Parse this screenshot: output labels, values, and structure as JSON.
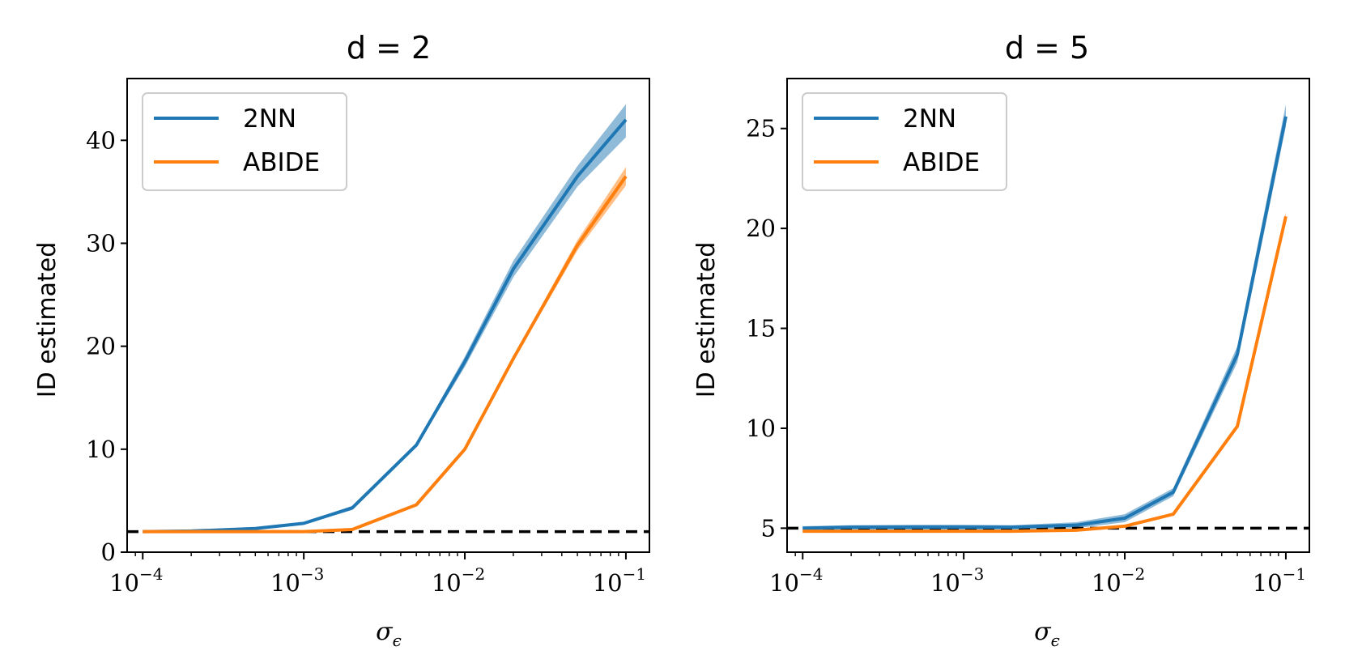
{
  "chart_data": [
    {
      "type": "line",
      "title": "d = 2",
      "xlabel": "σ",
      "xlabel_sub": "ϵ",
      "ylabel": "ID estimated",
      "xscale": "log",
      "xlim": [
        8e-05,
        0.14
      ],
      "ylim": [
        0,
        46
      ],
      "yticks": [
        "0",
        "10",
        "20",
        "30",
        "40"
      ],
      "ytick_values": [
        0,
        10,
        20,
        30,
        40
      ],
      "xtick_values": [
        0.0001,
        0.001,
        0.01,
        0.1
      ],
      "xtick_base": "10",
      "xtick_exponents": [
        "−4",
        "−3",
        "−2",
        "−1"
      ],
      "legend_position": "top-left",
      "x": [
        0.0001,
        0.0002,
        0.0005,
        0.001,
        0.002,
        0.005,
        0.01,
        0.02,
        0.05,
        0.1
      ],
      "series": [
        {
          "name": "2NN",
          "color": "#1f77b4",
          "values": [
            2.0,
            2.05,
            2.3,
            2.8,
            4.3,
            10.4,
            18.5,
            27.5,
            36.5,
            42.0
          ],
          "band_low": [
            1.98,
            2.02,
            2.25,
            2.7,
            4.1,
            10.2,
            18.0,
            26.7,
            35.5,
            40.3
          ],
          "band_high": [
            2.02,
            2.08,
            2.35,
            2.9,
            4.5,
            10.6,
            19.0,
            28.3,
            37.5,
            43.5
          ]
        },
        {
          "name": "ABIDE",
          "color": "#ff7f0e",
          "values": [
            2.0,
            2.0,
            2.0,
            2.0,
            2.2,
            4.6,
            10.0,
            18.8,
            29.8,
            36.5
          ],
          "band_low": [
            1.98,
            1.98,
            1.98,
            1.98,
            2.1,
            4.5,
            9.9,
            18.6,
            29.3,
            35.6
          ],
          "band_high": [
            2.02,
            2.02,
            2.02,
            2.02,
            2.3,
            4.7,
            10.1,
            19.0,
            30.3,
            37.4
          ]
        }
      ],
      "reference_line": {
        "value": 2,
        "color": "#000000",
        "style": "dashed"
      }
    },
    {
      "type": "line",
      "title": "d = 5",
      "xlabel": "σ",
      "xlabel_sub": "ϵ",
      "ylabel": "ID estimated",
      "xscale": "log",
      "xlim": [
        8e-05,
        0.14
      ],
      "ylim": [
        3.8,
        27.5
      ],
      "yticks": [
        "5",
        "10",
        "15",
        "20",
        "25"
      ],
      "ytick_values": [
        5,
        10,
        15,
        20,
        25
      ],
      "xtick_values": [
        0.0001,
        0.001,
        0.01,
        0.1
      ],
      "xtick_base": "10",
      "xtick_exponents": [
        "−4",
        "−3",
        "−2",
        "−1"
      ],
      "legend_position": "top-left",
      "x": [
        0.0001,
        0.0002,
        0.0005,
        0.001,
        0.002,
        0.005,
        0.01,
        0.02,
        0.05,
        0.1
      ],
      "series": [
        {
          "name": "2NN",
          "color": "#1f77b4",
          "values": [
            5.0,
            5.05,
            5.05,
            5.05,
            5.05,
            5.15,
            5.5,
            6.8,
            13.7,
            25.6
          ],
          "band_low": [
            4.9,
            4.92,
            4.92,
            4.92,
            4.92,
            5.0,
            5.3,
            6.6,
            13.3,
            25.1
          ],
          "band_high": [
            5.1,
            5.15,
            5.18,
            5.18,
            5.15,
            5.3,
            5.7,
            7.0,
            14.1,
            26.2
          ]
        },
        {
          "name": "ABIDE",
          "color": "#ff7f0e",
          "values": [
            4.85,
            4.85,
            4.85,
            4.85,
            4.85,
            4.9,
            5.1,
            5.7,
            10.1,
            20.6
          ],
          "band_low": [
            4.8,
            4.8,
            4.8,
            4.8,
            4.8,
            4.85,
            5.05,
            5.65,
            10.0,
            20.4
          ],
          "band_high": [
            4.9,
            4.9,
            4.9,
            4.9,
            4.9,
            4.95,
            5.15,
            5.75,
            10.2,
            20.8
          ]
        }
      ],
      "reference_line": {
        "value": 5,
        "color": "#000000",
        "style": "dashed"
      }
    }
  ]
}
